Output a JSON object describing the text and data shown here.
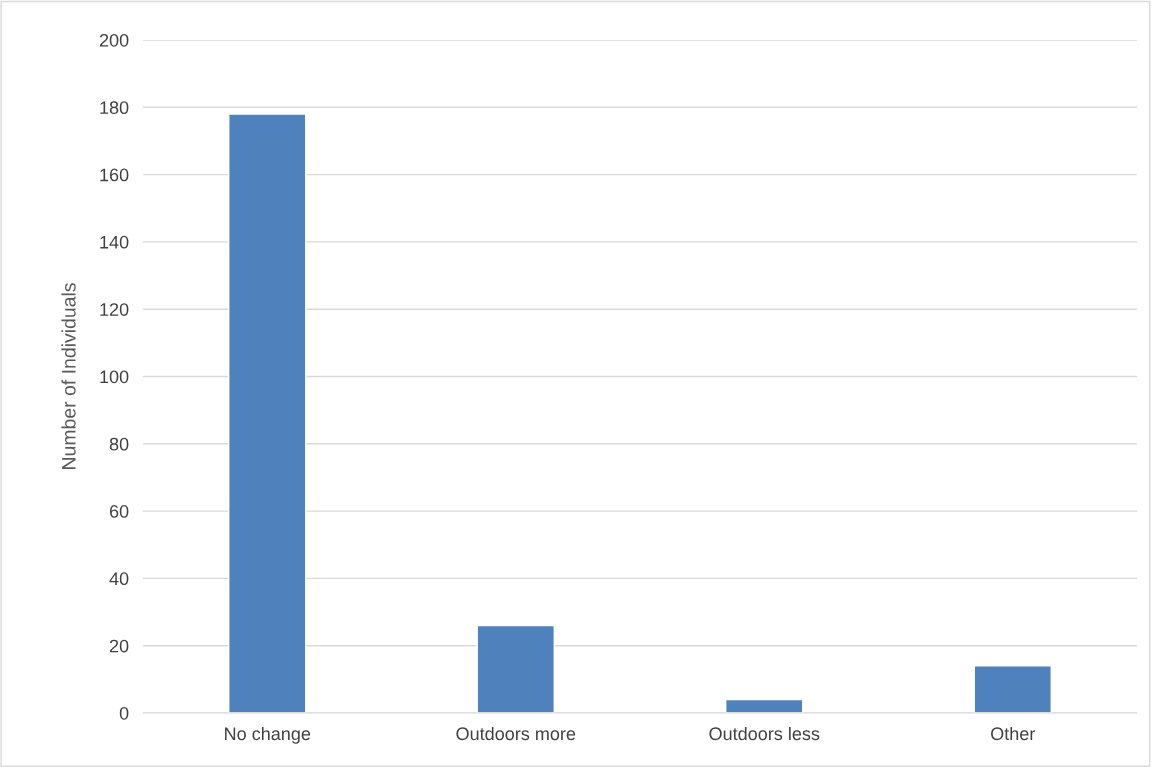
{
  "chart_data": {
    "type": "bar",
    "ylabel": "Number of Individuals",
    "categories": [
      "No change",
      "Outdoors more",
      "Outdoors less",
      "Other"
    ],
    "values": [
      178,
      26,
      4,
      14
    ],
    "color": "#4f81bd",
    "ylim": [
      0,
      200
    ],
    "yticks": [
      0,
      20,
      40,
      60,
      80,
      100,
      120,
      140,
      160,
      180,
      200
    ],
    "grid": "y"
  }
}
